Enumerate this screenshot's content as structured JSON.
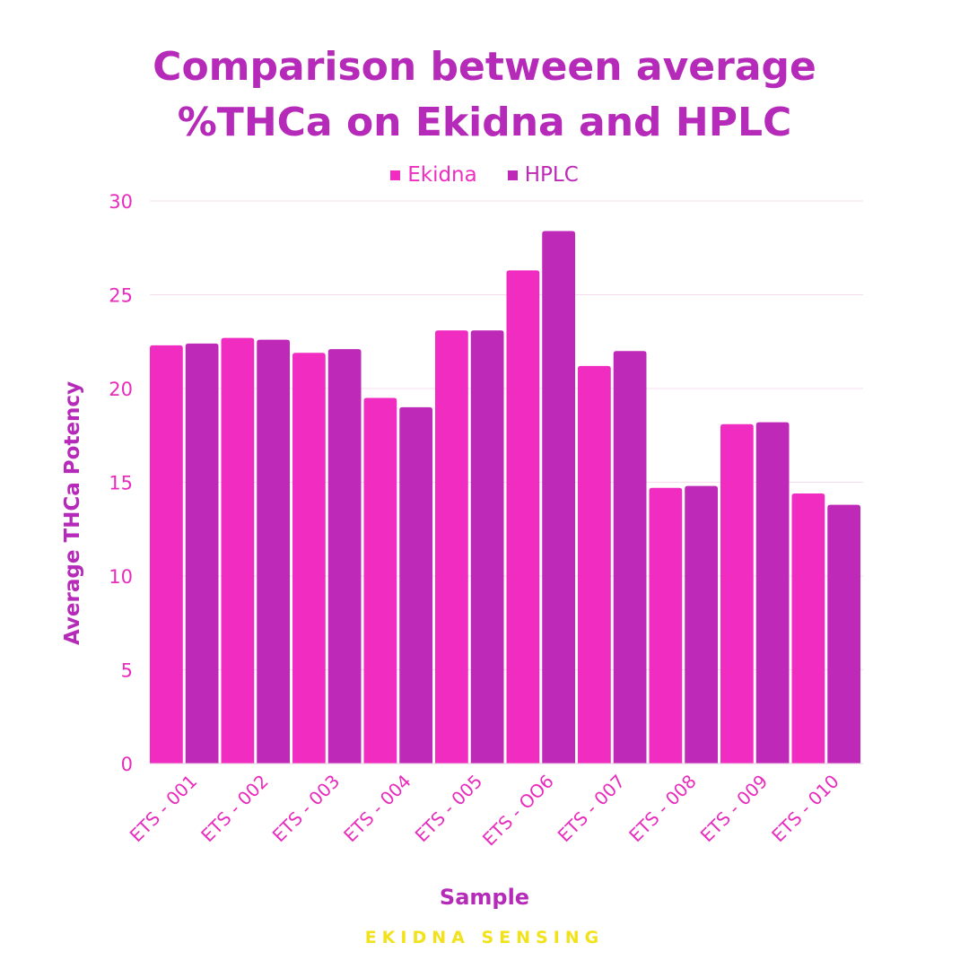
{
  "chart_data": {
    "type": "bar",
    "title_lines": [
      "Comparison between average",
      "%THCa on Ekidna and HPLC"
    ],
    "xlabel": "Sample",
    "ylabel": "Average THCa Potency",
    "ylim": [
      0,
      30
    ],
    "yticks": [
      0,
      5,
      10,
      15,
      20,
      25,
      30
    ],
    "grid": true,
    "legend_position": "top-center",
    "categories": [
      "ETS - 001",
      "ETS - 002",
      "ETS - 003",
      "ETS - 004",
      "ETS - 005",
      "ETS - OO6",
      "ETS - 007",
      "ETS - 008",
      "ETS - 009",
      "ETS - 010"
    ],
    "series": [
      {
        "name": "Ekidna",
        "color": "#f02dc0",
        "values": [
          22.3,
          22.7,
          21.9,
          19.5,
          23.1,
          26.3,
          21.2,
          14.7,
          18.1,
          14.4
        ]
      },
      {
        "name": "HPLC",
        "color": "#bf29b8",
        "values": [
          22.4,
          22.6,
          22.1,
          19.0,
          23.1,
          28.4,
          22.0,
          14.8,
          18.2,
          13.8
        ]
      }
    ]
  },
  "colors": {
    "title": "#b52ab8",
    "tick_labels": "#e82cbd",
    "grid": "#f6dcef",
    "footer": "#f2e21c"
  },
  "footer": "EKIDNA SENSING"
}
